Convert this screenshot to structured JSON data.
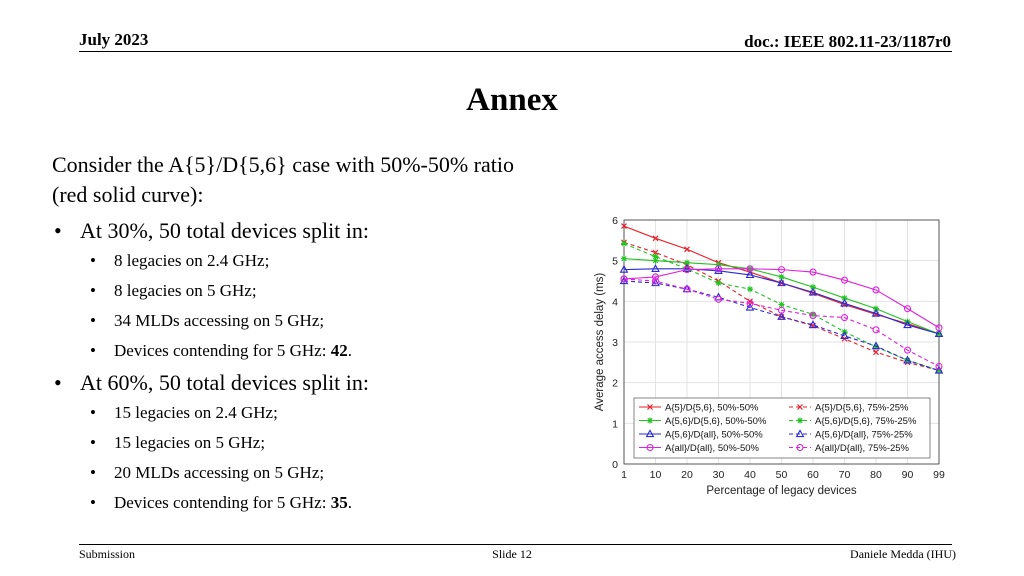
{
  "header": {
    "date": "July 2023",
    "doc": "doc.: IEEE 802.11-23/1187r0"
  },
  "title": "Annex",
  "body": {
    "intro_line1": "Consider the A{5}/D{5,6} case with 50%-50% ratio",
    "intro_line2": "(red solid curve):",
    "groups": [
      {
        "heading": "At 30%, 50 total devices split in:",
        "items": [
          "8 legacies on 2.4 GHz;",
          "8 legacies on 5 GHz;",
          "34 MLDs accessing on 5 GHz;"
        ],
        "final_prefix": "Devices contending for 5 GHz: ",
        "final_value": "42",
        "final_suffix": "."
      },
      {
        "heading": "At 60%, 50 total devices split in:",
        "items": [
          "15 legacies on 2.4 GHz;",
          "15 legacies on 5 GHz;",
          "20 MLDs accessing on 5 GHz;"
        ],
        "final_prefix": "Devices contending for 5 GHz: ",
        "final_value": "35",
        "final_suffix": "."
      }
    ]
  },
  "footer": {
    "left": "Submission",
    "center": "Slide 12",
    "right": "Daniele Medda (IHU)"
  },
  "chart_data": {
    "type": "line",
    "xlabel": "Percentage of legacy devices",
    "ylabel": "Average access delay (ms)",
    "x": [
      1,
      10,
      20,
      30,
      40,
      50,
      60,
      70,
      80,
      90,
      99
    ],
    "ylim": [
      0,
      6
    ],
    "yticks": [
      0,
      1,
      2,
      3,
      4,
      5,
      6
    ],
    "grid": true,
    "legend_position": "bottom-inside",
    "series": [
      {
        "name": "A{5}/D{5,6}, 50%-50%",
        "color": "#e8212a",
        "style": "solid",
        "marker": "x",
        "values": [
          5.85,
          5.55,
          5.28,
          4.95,
          4.72,
          4.45,
          4.2,
          3.92,
          3.68,
          3.45,
          3.2
        ]
      },
      {
        "name": "A{5}/D{5,6}, 75%-25%",
        "color": "#e8212a",
        "style": "dashed",
        "marker": "x",
        "values": [
          5.45,
          5.2,
          4.9,
          4.5,
          4.0,
          3.62,
          3.4,
          3.08,
          2.75,
          2.5,
          2.3
        ]
      },
      {
        "name": "A{5,6}/D{5,6}, 50%-50%",
        "color": "#22c422",
        "style": "solid",
        "marker": "*",
        "values": [
          5.05,
          5.0,
          4.95,
          4.9,
          4.8,
          4.6,
          4.35,
          4.08,
          3.82,
          3.5,
          3.2
        ]
      },
      {
        "name": "A{5,6}/D{5,6}, 75%-25%",
        "color": "#22c422",
        "style": "dashed",
        "marker": "*",
        "values": [
          5.42,
          5.1,
          4.8,
          4.45,
          4.3,
          3.92,
          3.68,
          3.25,
          2.88,
          2.55,
          2.3
        ]
      },
      {
        "name": "A{5,6}/D{all}, 50%-50%",
        "color": "#2a2ad6",
        "style": "solid",
        "marker": "triangle",
        "values": [
          4.78,
          4.8,
          4.8,
          4.75,
          4.65,
          4.45,
          4.22,
          3.95,
          3.7,
          3.42,
          3.2
        ]
      },
      {
        "name": "A{5,6}/D{all}, 75%-25%",
        "color": "#2a2ad6",
        "style": "dashed",
        "marker": "triangle",
        "values": [
          4.5,
          4.45,
          4.3,
          4.1,
          3.85,
          3.62,
          3.42,
          3.15,
          2.9,
          2.55,
          2.3
        ]
      },
      {
        "name": "A{all}/D{all}, 50%-50%",
        "color": "#e020e0",
        "style": "solid",
        "marker": "circle",
        "values": [
          4.55,
          4.6,
          4.78,
          4.8,
          4.8,
          4.78,
          4.72,
          4.52,
          4.28,
          3.82,
          3.35
        ]
      },
      {
        "name": "A{all}/D{all}, 75%-25%",
        "color": "#e020e0",
        "style": "dashed",
        "marker": "circle",
        "values": [
          4.55,
          4.5,
          4.3,
          4.05,
          3.95,
          3.78,
          3.65,
          3.6,
          3.3,
          2.8,
          2.4
        ]
      }
    ]
  }
}
